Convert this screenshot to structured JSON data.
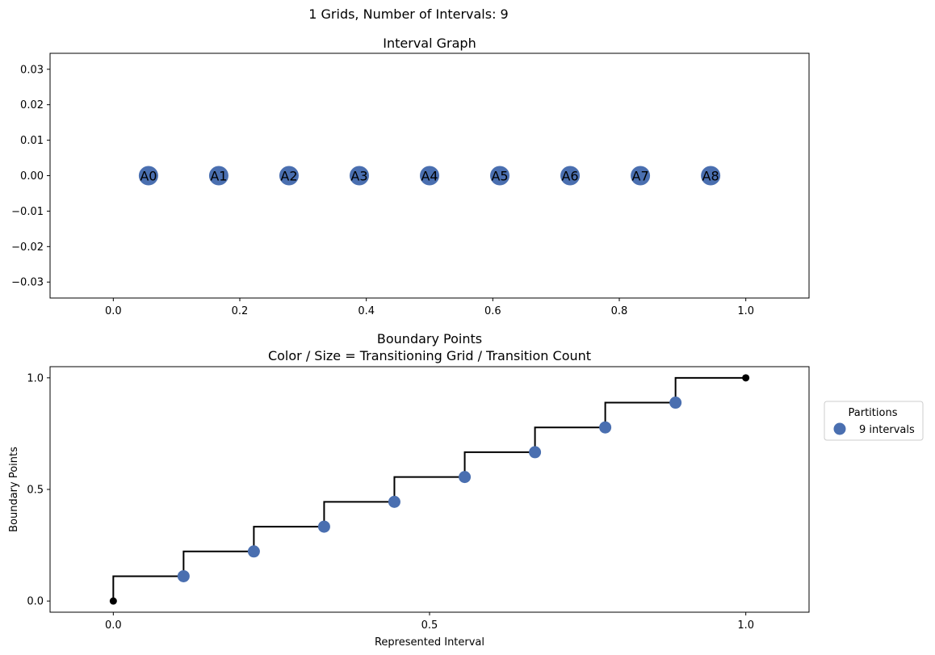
{
  "suptitle": "1 Grids, Number of Intervals: 9",
  "colors": {
    "node": "#4a6fb0",
    "step_line": "#000000",
    "endpoint": "#000000",
    "frame": "#000000"
  },
  "chart_data": [
    {
      "type": "scatter",
      "title": "Interval Graph",
      "xlabel": "",
      "ylabel": "",
      "xlim": [
        -0.1,
        1.1
      ],
      "ylim": [
        -0.0345,
        0.0345
      ],
      "xticks": [
        0.0,
        0.2,
        0.4,
        0.6,
        0.8,
        1.0
      ],
      "xtick_labels": [
        "0.0",
        "0.2",
        "0.4",
        "0.6",
        "0.8",
        "1.0"
      ],
      "yticks": [
        0.03,
        0.02,
        0.01,
        0.0,
        -0.01,
        -0.02,
        -0.03
      ],
      "ytick_labels": [
        "0.03",
        "0.02",
        "0.01",
        "0.00",
        "−0.01",
        "−0.02",
        "−0.03"
      ],
      "grid": false,
      "nodes": [
        {
          "label": "A0",
          "x": 0.0556,
          "y": 0
        },
        {
          "label": "A1",
          "x": 0.1667,
          "y": 0
        },
        {
          "label": "A2",
          "x": 0.2778,
          "y": 0
        },
        {
          "label": "A3",
          "x": 0.3889,
          "y": 0
        },
        {
          "label": "A4",
          "x": 0.5,
          "y": 0
        },
        {
          "label": "A5",
          "x": 0.6111,
          "y": 0
        },
        {
          "label": "A6",
          "x": 0.7222,
          "y": 0
        },
        {
          "label": "A7",
          "x": 0.8333,
          "y": 0
        },
        {
          "label": "A8",
          "x": 0.9444,
          "y": 0
        }
      ]
    },
    {
      "type": "line",
      "title": "Boundary Points",
      "subtitle": "Color / Size = Transitioning Grid / Transition Count",
      "xlabel": "Represented Interval",
      "ylabel": "Boundary Points",
      "xlim": [
        -0.1,
        1.1
      ],
      "ylim": [
        -0.05,
        1.05
      ],
      "xticks": [
        0.0,
        0.5,
        1.0
      ],
      "xtick_labels": [
        "0.0",
        "0.5",
        "1.0"
      ],
      "yticks": [
        0.0,
        0.5,
        1.0
      ],
      "ytick_labels": [
        "0.0",
        "0.5",
        "1.0"
      ],
      "grid": false,
      "step": {
        "x": [
          0.0,
          0.1111,
          0.2222,
          0.3333,
          0.4444,
          0.5556,
          0.6667,
          0.7778,
          0.8889,
          1.0
        ],
        "y": [
          0.0,
          0.1111,
          0.2222,
          0.3333,
          0.4444,
          0.5556,
          0.6667,
          0.7778,
          0.8889,
          1.0
        ]
      },
      "points": [
        {
          "x": 0.1111,
          "y": 0.1111
        },
        {
          "x": 0.2222,
          "y": 0.2222
        },
        {
          "x": 0.3333,
          "y": 0.3333
        },
        {
          "x": 0.4444,
          "y": 0.4444
        },
        {
          "x": 0.5556,
          "y": 0.5556
        },
        {
          "x": 0.6667,
          "y": 0.6667
        },
        {
          "x": 0.7778,
          "y": 0.7778
        },
        {
          "x": 0.8889,
          "y": 0.8889
        }
      ],
      "endpoints": [
        {
          "x": 0.0,
          "y": 0.0
        },
        {
          "x": 1.0,
          "y": 1.0
        }
      ],
      "legend": {
        "title": "Partitions",
        "placement": "outside-right",
        "entries": [
          {
            "label": "9 intervals"
          }
        ]
      }
    }
  ]
}
